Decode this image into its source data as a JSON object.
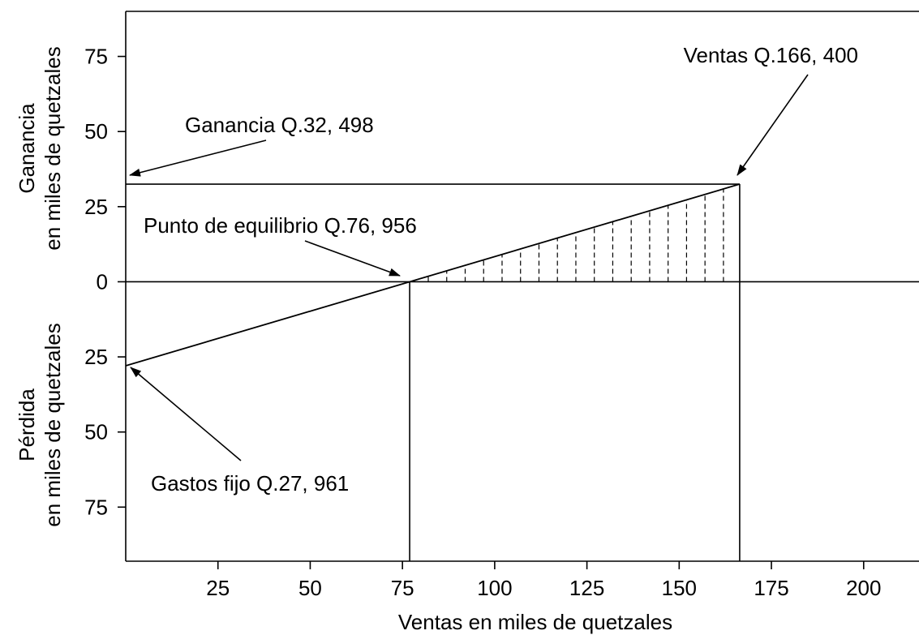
{
  "chart_data": {
    "type": "line",
    "xlabel": "Ventas en miles de quetzales",
    "ylabel_top": [
      "Ganancia",
      "en miles de quetzales"
    ],
    "ylabel_bottom": [
      "Pérdida",
      "en miles de quetzales"
    ],
    "xlim": [
      0,
      215
    ],
    "ylim": [
      -93,
      90
    ],
    "x_ticks": [
      25,
      50,
      75,
      100,
      125,
      150,
      175,
      200
    ],
    "y_ticks": [
      {
        "value": 75,
        "label": "75"
      },
      {
        "value": 50,
        "label": "50"
      },
      {
        "value": 25,
        "label": "25"
      },
      {
        "value": 0,
        "label": "0"
      },
      {
        "value": -25,
        "label": "25"
      },
      {
        "value": -50,
        "label": "50"
      },
      {
        "value": -75,
        "label": "75"
      }
    ],
    "profit_line": {
      "x": [
        0,
        166.4
      ],
      "y": [
        -27.961,
        32.498
      ]
    },
    "break_even": {
      "x": 76.956,
      "y": 0
    },
    "sales_level": {
      "x": 166.4,
      "y": 32.498
    },
    "profit_level": 32.498,
    "hatch_start": 82,
    "hatch_step": 5,
    "grid": false,
    "annotations": [
      {
        "id": "ventas",
        "text": "Ventas Q.166, 400"
      },
      {
        "id": "ganancia",
        "text": "Ganancia Q.32, 498"
      },
      {
        "id": "equilibrio",
        "text": "Punto de equilibrio Q.76, 956"
      },
      {
        "id": "gastos",
        "text": "Gastos fijo Q.27, 961"
      }
    ]
  }
}
